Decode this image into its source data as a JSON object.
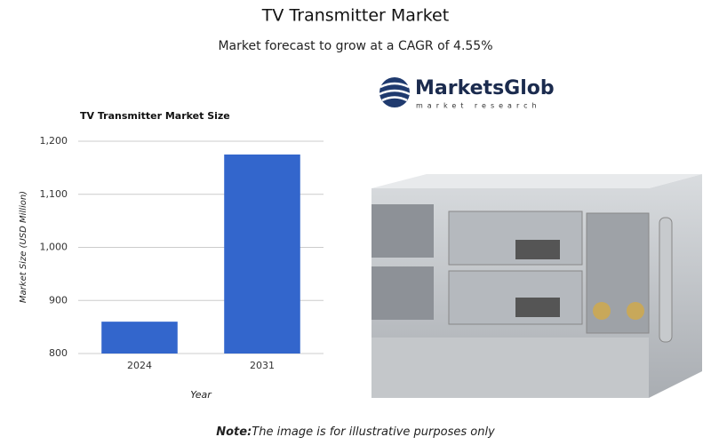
{
  "title": "TV Transmitter Market",
  "subtitle": "Market forecast to grow at a CAGR of 4.55%",
  "logo": {
    "name": "MarketsGlob",
    "tagline": "market research"
  },
  "note": {
    "label": "Note:",
    "text": "The image is for illustrative purposes only"
  },
  "chart_data": {
    "type": "bar",
    "title": "TV Transmitter Market Size",
    "x_label": "Year",
    "y_label": "Market Size (USD Million)",
    "categories": [
      "2024",
      "2031"
    ],
    "values": [
      860,
      1175
    ],
    "color": "#3366cc",
    "ylim": [
      800,
      1200
    ],
    "yticks": [
      800,
      900,
      {
        "value": 1000,
        "label": "1,000"
      },
      {
        "value": 1100,
        "label": "1,100"
      },
      {
        "value": 1200,
        "label": "1,200"
      }
    ],
    "grid": true
  }
}
